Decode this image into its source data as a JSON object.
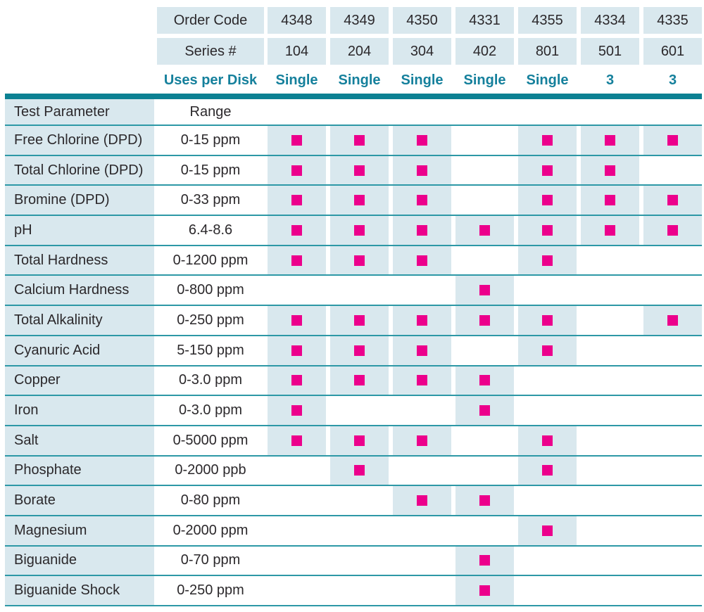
{
  "colors": {
    "cell_blue": "#d9e8ee",
    "bar_teal": "#0c8193",
    "line_teal": "#2d98a6",
    "teal_text": "#15809c",
    "marker_pink": "#ec008c",
    "text_dark": "#2b282b"
  },
  "header": {
    "order_code_label": "Order Code",
    "series_label": "Series #",
    "uses_label": "Uses per Disk",
    "columns": [
      {
        "order_code": "4348",
        "series": "104",
        "uses": "Single"
      },
      {
        "order_code": "4349",
        "series": "204",
        "uses": "Single"
      },
      {
        "order_code": "4350",
        "series": "304",
        "uses": "Single"
      },
      {
        "order_code": "4331",
        "series": "402",
        "uses": "Single"
      },
      {
        "order_code": "4355",
        "series": "801",
        "uses": "Single"
      },
      {
        "order_code": "4334",
        "series": "501",
        "uses": "3"
      },
      {
        "order_code": "4335",
        "series": "601",
        "uses": "3"
      }
    ]
  },
  "table": {
    "parameter_header": "Test Parameter",
    "range_header": "Range",
    "marker": "pink-square",
    "rows": [
      {
        "parameter": "Free Chlorine (DPD)",
        "range": "0-15 ppm",
        "disks": [
          1,
          1,
          1,
          0,
          1,
          1,
          1
        ]
      },
      {
        "parameter": "Total Chlorine (DPD)",
        "range": "0-15 ppm",
        "disks": [
          1,
          1,
          1,
          0,
          1,
          1,
          0
        ]
      },
      {
        "parameter": "Bromine (DPD)",
        "range": "0-33 ppm",
        "disks": [
          1,
          1,
          1,
          0,
          1,
          1,
          1
        ]
      },
      {
        "parameter": "pH",
        "range": "6.4-8.6",
        "disks": [
          1,
          1,
          1,
          1,
          1,
          1,
          1
        ]
      },
      {
        "parameter": "Total Hardness",
        "range": "0-1200 ppm",
        "disks": [
          1,
          1,
          1,
          0,
          1,
          0,
          0
        ]
      },
      {
        "parameter": "Calcium Hardness",
        "range": "0-800 ppm",
        "disks": [
          0,
          0,
          0,
          1,
          0,
          0,
          0
        ]
      },
      {
        "parameter": "Total Alkalinity",
        "range": "0-250 ppm",
        "disks": [
          1,
          1,
          1,
          1,
          1,
          0,
          1
        ]
      },
      {
        "parameter": "Cyanuric Acid",
        "range": "5-150 ppm",
        "disks": [
          1,
          1,
          1,
          0,
          1,
          0,
          0
        ]
      },
      {
        "parameter": "Copper",
        "range": "0-3.0 ppm",
        "disks": [
          1,
          1,
          1,
          1,
          0,
          0,
          0
        ]
      },
      {
        "parameter": "Iron",
        "range": "0-3.0 ppm",
        "disks": [
          1,
          0,
          0,
          1,
          0,
          0,
          0
        ]
      },
      {
        "parameter": "Salt",
        "range": "0-5000 ppm",
        "disks": [
          1,
          1,
          1,
          0,
          1,
          0,
          0
        ]
      },
      {
        "parameter": "Phosphate",
        "range": "0-2000 ppb",
        "disks": [
          0,
          1,
          0,
          0,
          1,
          0,
          0
        ]
      },
      {
        "parameter": "Borate",
        "range": "0-80 ppm",
        "disks": [
          0,
          0,
          1,
          1,
          0,
          0,
          0
        ]
      },
      {
        "parameter": "Magnesium",
        "range": "0-2000 ppm",
        "disks": [
          0,
          0,
          0,
          0,
          1,
          0,
          0
        ]
      },
      {
        "parameter": "Biguanide",
        "range": "0-70 ppm",
        "disks": [
          0,
          0,
          0,
          1,
          0,
          0,
          0
        ]
      },
      {
        "parameter": "Biguanide Shock",
        "range": "0-250 ppm",
        "disks": [
          0,
          0,
          0,
          1,
          0,
          0,
          0
        ]
      }
    ]
  }
}
